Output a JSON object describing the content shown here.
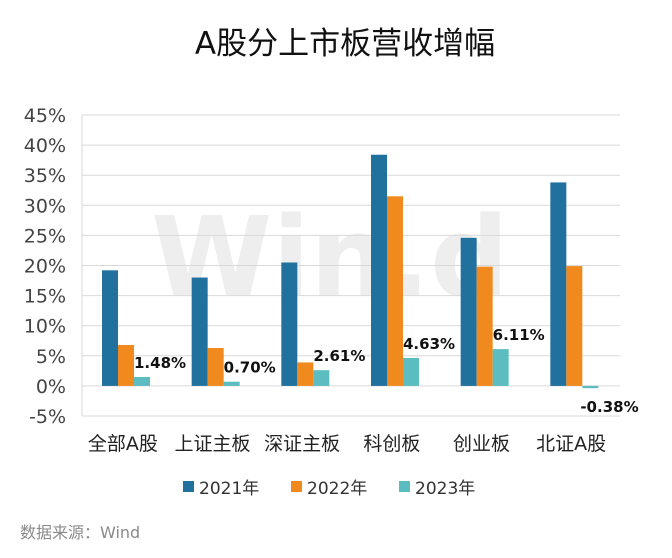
{
  "chart_data": {
    "type": "bar",
    "title": "A股分上市板营收增幅",
    "categories": [
      "全部A股",
      "上证主板",
      "深证主板",
      "科创板",
      "创业板",
      "北证A股"
    ],
    "series": [
      {
        "name": "2021年",
        "color": "#21719e",
        "values": [
          19.2,
          18.0,
          20.5,
          38.4,
          24.6,
          33.8
        ]
      },
      {
        "name": "2022年",
        "color": "#f18a1e",
        "values": [
          6.8,
          6.3,
          3.9,
          31.5,
          19.8,
          19.9
        ]
      },
      {
        "name": "2023年",
        "color": "#5bbdc0",
        "values": [
          1.48,
          0.7,
          2.61,
          4.63,
          6.11,
          -0.38
        ],
        "data_labels": [
          "1.48%",
          "0.70%",
          "2.61%",
          "4.63%",
          "6.11%",
          "-0.38%"
        ]
      }
    ],
    "ylim": [
      -5,
      45
    ],
    "yticks": [
      "-5%",
      "0%",
      "5%",
      "10%",
      "15%",
      "20%",
      "25%",
      "30%",
      "35%",
      "40%",
      "45%"
    ],
    "grid": true,
    "legend": "bottom",
    "xlabel": "",
    "ylabel": ""
  },
  "watermark": "Wind",
  "source": "数据来源：Wind"
}
